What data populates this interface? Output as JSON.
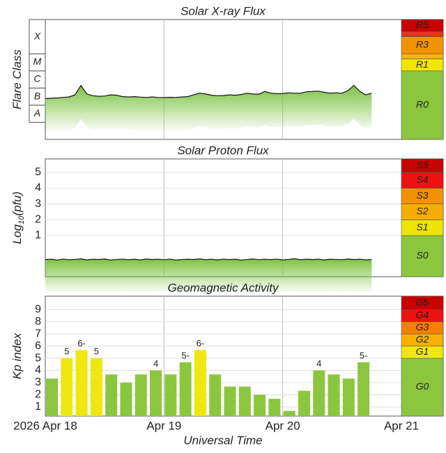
{
  "chart_data": [
    {
      "type": "line",
      "title": "Solar X-ray Flux",
      "ylabel": "Flare Class",
      "x": [
        0,
        0.05,
        0.1,
        0.15,
        0.2,
        0.25,
        0.3,
        0.35,
        0.4,
        0.45,
        0.5,
        0.55,
        0.6,
        0.65,
        0.7,
        0.75,
        0.8,
        0.85,
        0.9,
        0.95,
        1.0,
        1.05,
        1.1,
        1.15,
        1.2,
        1.25,
        1.3,
        1.35,
        1.4,
        1.45,
        1.5,
        1.55,
        1.6,
        1.65,
        1.7,
        1.75,
        1.8,
        1.85,
        1.9,
        1.95,
        2.0,
        2.05,
        2.1,
        2.15,
        2.2,
        2.25,
        2.3,
        2.35,
        2.4,
        2.45,
        2.5,
        2.55,
        2.6,
        2.65,
        2.7,
        2.75
      ],
      "values": [
        -6.62,
        -6.6,
        -6.58,
        -6.55,
        -6.52,
        -6.4,
        -5.85,
        -6.35,
        -6.45,
        -6.48,
        -6.47,
        -6.4,
        -6.42,
        -6.5,
        -6.52,
        -6.5,
        -6.53,
        -6.55,
        -6.52,
        -6.55,
        -6.56,
        -6.54,
        -6.55,
        -6.52,
        -6.5,
        -6.4,
        -6.3,
        -6.35,
        -6.42,
        -6.45,
        -6.44,
        -6.4,
        -6.42,
        -6.38,
        -6.3,
        -6.35,
        -6.36,
        -6.2,
        -6.3,
        -6.33,
        -6.32,
        -6.28,
        -6.3,
        -6.3,
        -6.22,
        -6.2,
        -6.18,
        -6.25,
        -6.3,
        -6.28,
        -6.3,
        -6.15,
        -5.85,
        -6.2,
        -6.4,
        -6.3
      ],
      "color": "#111111",
      "fill_color": "#7cc242",
      "ylim": [
        -9,
        -2
      ],
      "classes": {
        "labels": [
          "A",
          "B",
          "C",
          "M",
          "X"
        ],
        "bounds": [
          -8,
          -7,
          -6,
          -5,
          -4,
          -2
        ]
      },
      "scale": {
        "labels": [
          "R0",
          "R1",
          null,
          "R3",
          null,
          "R5"
        ],
        "bounds": [
          -9,
          -5,
          -4.3,
          -4,
          -3,
          -2.7,
          -2
        ],
        "colors": [
          "#8cc63f",
          "#f2e600",
          "#f7b500",
          "#f39200",
          "#e8330b",
          "#c80000"
        ]
      }
    },
    {
      "type": "line",
      "title": "Solar Proton Flux",
      "ylabel": "Log",
      "ylabel_sub": "10",
      "ylabel_suffix": "(pfu)",
      "x": [
        0,
        0.05,
        0.1,
        0.15,
        0.2,
        0.25,
        0.3,
        0.35,
        0.4,
        0.45,
        0.5,
        0.55,
        0.6,
        0.65,
        0.7,
        0.75,
        0.8,
        0.85,
        0.9,
        0.95,
        1.0,
        1.05,
        1.1,
        1.15,
        1.2,
        1.25,
        1.3,
        1.35,
        1.4,
        1.45,
        1.5,
        1.55,
        1.6,
        1.65,
        1.7,
        1.75,
        1.8,
        1.85,
        1.9,
        1.95,
        2.0,
        2.05,
        2.1,
        2.15,
        2.2,
        2.25,
        2.3,
        2.35,
        2.4,
        2.45,
        2.5,
        2.55,
        2.6,
        2.65,
        2.7,
        2.75
      ],
      "values": [
        -0.52,
        -0.5,
        -0.55,
        -0.49,
        -0.53,
        -0.51,
        -0.47,
        -0.54,
        -0.5,
        -0.52,
        -0.48,
        -0.55,
        -0.51,
        -0.49,
        -0.53,
        -0.5,
        -0.54,
        -0.48,
        -0.52,
        -0.5,
        -0.53,
        -0.49,
        -0.55,
        -0.51,
        -0.5,
        -0.52,
        -0.47,
        -0.53,
        -0.5,
        -0.54,
        -0.49,
        -0.52,
        -0.5,
        -0.55,
        -0.51,
        -0.48,
        -0.53,
        -0.5,
        -0.52,
        -0.49,
        -0.54,
        -0.51,
        -0.46,
        -0.53,
        -0.5,
        -0.52,
        -0.49,
        -0.54,
        -0.5,
        -0.51,
        -0.53,
        -0.48,
        -0.52,
        -0.5,
        -0.54,
        -0.51
      ],
      "color": "#111111",
      "fill_color": "#7cc242",
      "ylim": [
        -1.6,
        5.85
      ],
      "yticks": [
        1,
        2,
        3,
        4,
        5
      ],
      "grid": true,
      "scale": {
        "labels": [
          "S0",
          "S1",
          "S2",
          "S3",
          "S4",
          "S5"
        ],
        "bounds": [
          -1.6,
          1,
          2,
          3,
          4,
          5,
          5.85
        ],
        "colors": [
          "#8cc63f",
          "#eee400",
          "#f7ac00",
          "#f39200",
          "#ee1111",
          "#c80000"
        ]
      }
    },
    {
      "type": "bar",
      "title": "Geomagnetic Activity",
      "ylabel": "Kp index",
      "xlabel": "Universal Time",
      "x": [
        0,
        0.125,
        0.25,
        0.375,
        0.5,
        0.625,
        0.75,
        0.875,
        1.0,
        1.125,
        1.25,
        1.375,
        1.5,
        1.625,
        1.75,
        1.875,
        2.0,
        2.125,
        2.25,
        2.375,
        2.5,
        2.625
      ],
      "values": [
        3.33,
        5,
        5.67,
        5,
        3.67,
        3,
        3.67,
        4,
        3.67,
        4.67,
        5.67,
        3.67,
        2.67,
        2.67,
        2,
        1.67,
        0.67,
        2.33,
        4,
        3.67,
        3.33,
        4.67
      ],
      "value_labels": [
        null,
        "5",
        "6-",
        "5",
        null,
        null,
        null,
        "4",
        null,
        "5-",
        "6-",
        null,
        null,
        null,
        null,
        null,
        null,
        null,
        "4",
        null,
        null,
        "5-"
      ],
      "ylim": [
        0.25,
        10.1
      ],
      "yticks": [
        1,
        2,
        3,
        4,
        5,
        6,
        7,
        8,
        9
      ],
      "grid": true,
      "xlim": [
        0,
        3
      ],
      "xticks": [
        {
          "value": 0,
          "label": "2026 Apr 18"
        },
        {
          "value": 1,
          "label": "Apr 19"
        },
        {
          "value": 2,
          "label": "Apr 20"
        },
        {
          "value": 3,
          "label": "Apr 21"
        }
      ],
      "scale": {
        "labels": [
          "G0",
          "G1",
          "G2",
          "G3",
          "G4",
          "G5"
        ],
        "bounds": [
          0.25,
          5,
          6,
          7,
          8,
          9,
          10.1
        ],
        "colors": [
          "#8cc63f",
          "#eee810",
          "#f7b000",
          "#f38000",
          "#ee1111",
          "#c80000"
        ]
      }
    }
  ]
}
